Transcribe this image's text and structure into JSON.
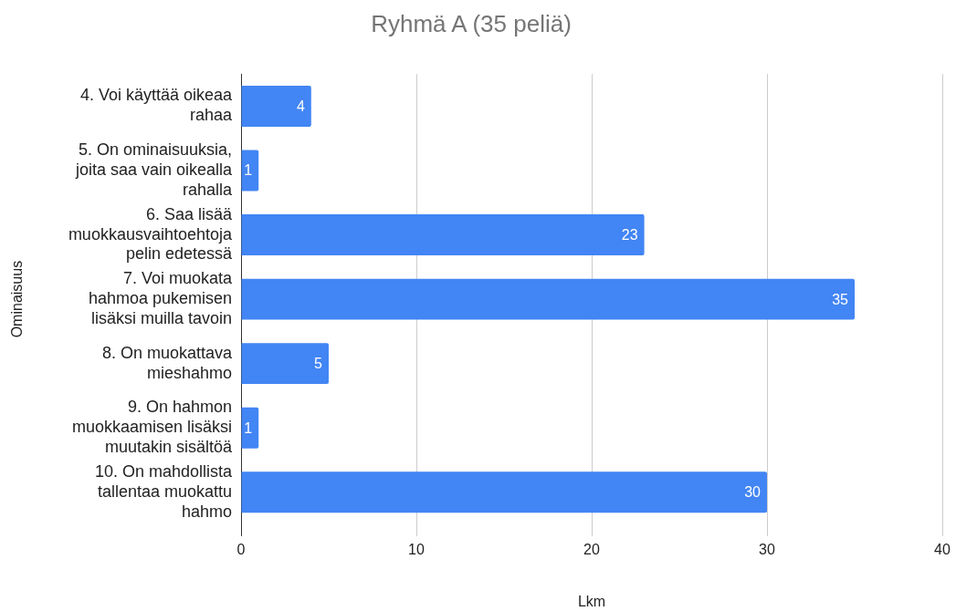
{
  "chart_data": {
    "type": "bar",
    "orientation": "horizontal",
    "title": "Ryhmä A (35 peliä)",
    "xlabel": "Lkm",
    "ylabel": "Ominaisuus",
    "categories": [
      "4. Voi käyttää oikeaa rahaa",
      "5. On ominaisuuksia, joita saa vain oikealla rahalla",
      "6. Saa lisää muokkausvaihtoehtoja pelin edetessä",
      "7. Voi muokata hahmoa pukemisen lisäksi muilla tavoin",
      "8. On muokattava mieshahmo",
      "9. On hahmon muokkaamisen lisäksi muutakin sisältöä",
      "10. On mahdollista tallentaa muokattu hahmo"
    ],
    "values": [
      4,
      1,
      23,
      35,
      5,
      1,
      30
    ],
    "color": "#4285f4",
    "xlim": [
      0,
      40
    ],
    "xticks": [
      0,
      10,
      20,
      30,
      40
    ],
    "grid": "x",
    "data_labels": true
  }
}
